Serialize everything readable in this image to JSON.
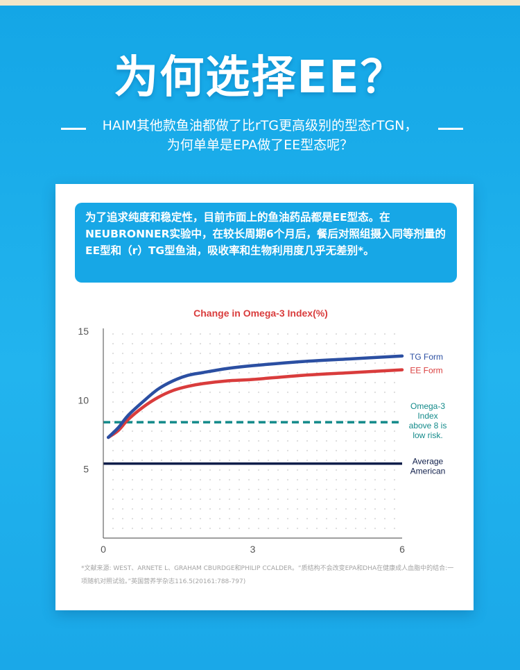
{
  "header": {
    "title": "为何选择EE？",
    "subtitle_line1": "HAIM其他款鱼油都做了比rTG更高级别的型态rTGN，",
    "subtitle_line2": "为何单单是EPA做了EE型态呢？"
  },
  "callout": {
    "text": "为了追求纯度和稳定性，目前市面上的鱼油药品都是EE型态。在NEUBRONNER实验中，在较长周期6个月后，餐后对照组摄入同等剂量的EE型和（r）TG型鱼油，吸收率和生物利用度几乎无差别*。"
  },
  "reference": "*文献来源: WEST、ARNETE L、GRAHAM CBURDGE和PHILIP CCALDER。“质结构不会改变EPA和DHA在健康成人血脂中的结合:一项随机对照试验。”英国营养学杂志116.5(20161:788-797)",
  "colors": {
    "tg": "#2b4fa2",
    "ee": "#d93c3c",
    "omega_threshold": "#138a8a",
    "average_american": "#0f1e4a",
    "title_red": "#d93c3c",
    "callout_bg": "#17a7e6"
  },
  "chart_data": {
    "type": "line",
    "title": "Change in Omega-3 Index(%)",
    "xlabel": "",
    "ylabel": "",
    "xlim": [
      0,
      6
    ],
    "ylim": [
      0,
      15
    ],
    "x_ticks": [
      0,
      3,
      6
    ],
    "y_ticks": [
      5,
      10,
      15
    ],
    "grid": "dotted",
    "series": [
      {
        "name": "TG Form",
        "x": [
          0.1,
          0.3,
          0.5,
          0.8,
          1.1,
          1.4,
          1.7,
          2.0,
          2.5,
          3.0,
          4.0,
          5.0,
          6.0
        ],
        "y": [
          7.3,
          8.0,
          8.9,
          9.9,
          10.8,
          11.4,
          11.8,
          12.0,
          12.3,
          12.5,
          12.8,
          13.0,
          13.2
        ]
      },
      {
        "name": "EE Form",
        "x": [
          0.1,
          0.3,
          0.5,
          0.8,
          1.1,
          1.4,
          1.7,
          2.0,
          2.5,
          3.0,
          4.0,
          5.0,
          6.0
        ],
        "y": [
          7.3,
          7.8,
          8.6,
          9.5,
          10.2,
          10.7,
          11.0,
          11.2,
          11.4,
          11.5,
          11.8,
          12.0,
          12.2
        ]
      }
    ],
    "reference_lines": [
      {
        "y": 8.4,
        "style": "dashed",
        "label": "Omega-3 Index above 8 is low risk."
      },
      {
        "y": 5.4,
        "style": "solid",
        "label": "Average American"
      }
    ]
  }
}
